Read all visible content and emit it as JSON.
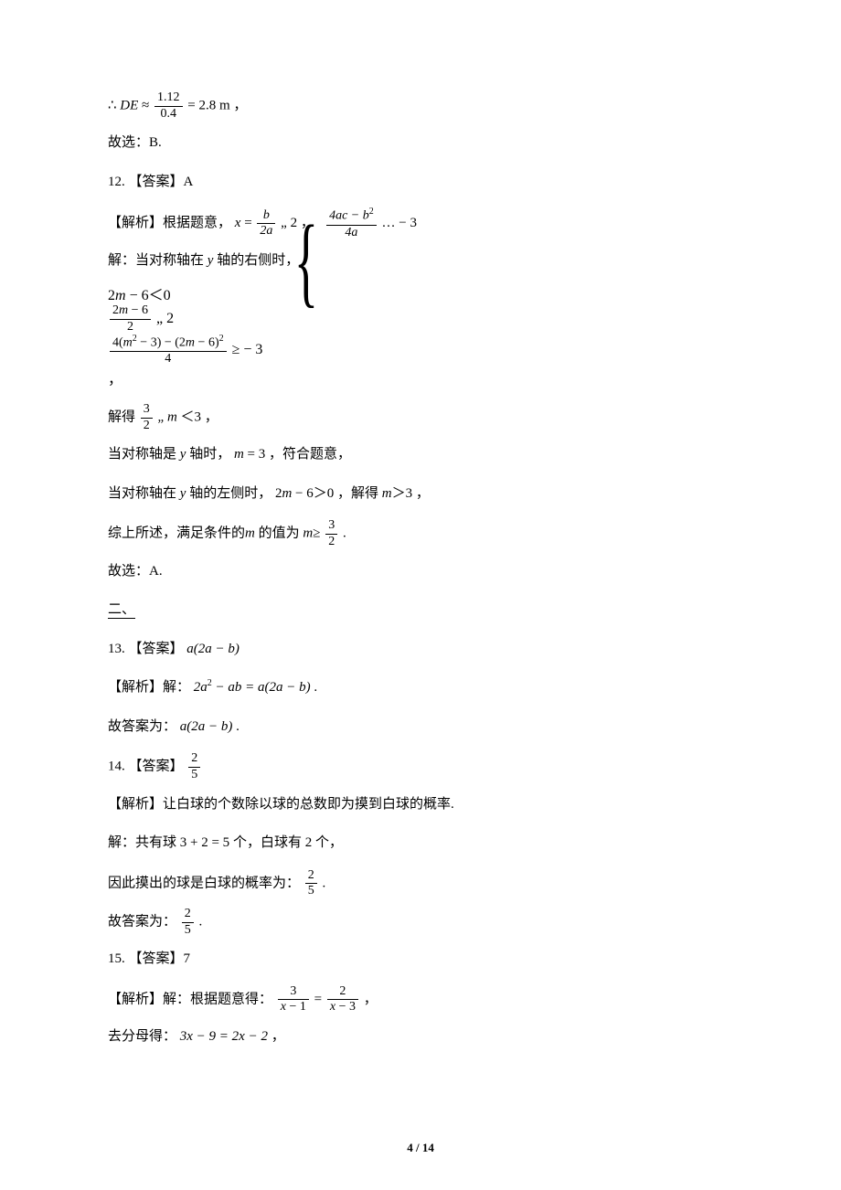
{
  "colors": {
    "text": "#000000",
    "background": "#ffffff"
  },
  "typography": {
    "body_font": "SimSun / Songti",
    "math_font": "Times New Roman",
    "body_size_pt": 11,
    "math_size_pt": 11
  },
  "page_number": {
    "current": "4",
    "total": "14",
    "sep": " / "
  },
  "l01a": "∴",
  "l01b": "DE",
  "l01c": " ≈ ",
  "l01_frac_num": "1.12",
  "l01_frac_den": "0.4",
  "l01d": " = 2.8 m ，",
  "l02": "故选：B.",
  "l03": "12. 【答案】A",
  "l04a": "【解析】根据题意，",
  "l04_x": "x",
  "l04_eq": " = ",
  "l04_f1_num": "b",
  "l04_f1_den": "2a",
  "l04b": "„ 2 ，",
  "l04_f2_num": "4ac − b",
  "l04_f2_num_sup": "2",
  "l04_f2_den": "4a",
  "l04c": "… − 3",
  "l05a": "解：当对称轴在 ",
  "l05_y": "y",
  "l05b": " 轴的右侧时，",
  "l05_tail": "，",
  "b_r1a": "2",
  "b_r1_m": "m",
  "b_r1b": " − 6＜0",
  "b_r2_num_a": "2",
  "b_r2_num_m": "m",
  "b_r2_num_b": " − 6",
  "b_r2_den": "2",
  "b_r2_tail": "„ 2",
  "b_r3_num_a": "4(",
  "b_r3_num_m1": "m",
  "b_r3_num_sup1": "2",
  "b_r3_num_b": " − 3) − (2",
  "b_r3_num_m2": "m",
  "b_r3_num_c": " − 6)",
  "b_r3_num_sup2": "2",
  "b_r3_den": "4",
  "b_r3_tail": "≥ − 3",
  "l06a": "解得",
  "l06_f_num": "3",
  "l06_f_den": "2",
  "l06b": "„ ",
  "l06_m": "m",
  "l06c": "＜3 ，",
  "l07a": "当对称轴是 ",
  "l07_y": "y",
  "l07b": " 轴时，",
  "l07_m": "m",
  "l07c": " = 3 ，符合题意，",
  "l08a": "当对称轴在 ",
  "l08_y": "y",
  "l08b": " 轴的左侧时，",
  "l08_expr_a": "2",
  "l08_expr_m": "m",
  "l08_expr_b": " − 6＞0 ，解得",
  "l08_m2": "m",
  "l08c": "＞3 ，",
  "l09a": "综上所述，满足条件的",
  "l09_m1": "m",
  "l09b": " 的值为",
  "l09_m2": "m",
  "l09c": "≥",
  "l09_f_num": "3",
  "l09_f_den": "2",
  "l09d": " .",
  "l10": "故选：A.",
  "sec2": "二、",
  "l11a": "13. 【答案】",
  "l11_expr": "a(2a − b)",
  "l12a": "【解析】解：",
  "l12_lhs": "2a",
  "l12_sup": "2",
  "l12_mid": " − ab = a(2a − b)",
  "l12b": " .",
  "l13a": "故答案为：",
  "l13_expr": "a(2a − b)",
  "l13b": " .",
  "l14a": "14. 【答案】",
  "l14_num": "2",
  "l14_den": "5",
  "l15": "【解析】让白球的个数除以球的总数即为摸到白球的概率.",
  "l16a": "解：共有球",
  "l16_expr": "3 + 2 = 5",
  "l16b": "个，白球有 2 个，",
  "l17a": "因此摸出的球是白球的概率为：",
  "l17_num": "2",
  "l17_den": "5",
  "l17b": " .",
  "l18a": "故答案为：",
  "l18_num": "2",
  "l18_den": "5",
  "l18b": " .",
  "l19": "15. 【答案】7",
  "l20a": "【解析】解：根据题意得：",
  "l20_f1_num": "3",
  "l20_f1_den_x": "x",
  "l20_f1_den_b": " − 1",
  "l20_eq": " = ",
  "l20_f2_num": "2",
  "l20_f2_den_x": "x",
  "l20_f2_den_b": " − 3",
  "l20b": " ，",
  "l21a": "去分母得：",
  "l21_expr": "3x − 9 = 2x − 2",
  "l21b": " ，"
}
